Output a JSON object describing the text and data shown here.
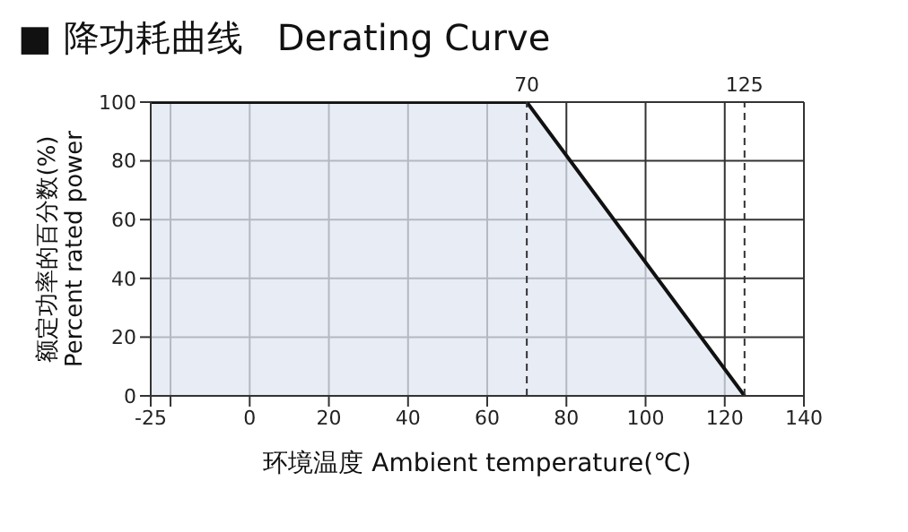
{
  "chart_data": {
    "type": "area",
    "title": "■ 降功耗曲线   Derating Curve",
    "xlabel": "环境温度 Ambient temperature(℃)",
    "ylabel": "额定功率的百分数(%)\nPercent rated power",
    "series": [
      {
        "color": "#dfe6f2",
        "x": [
          -25,
          70,
          125
        ],
        "values": [
          100,
          100,
          0
        ]
      }
    ],
    "xlim": [
      -25,
      140
    ],
    "xticks": [
      -25,
      {
        "value": -20,
        "label": null
      },
      0,
      20,
      40,
      60,
      80,
      100,
      120,
      140
    ],
    "ylim": [
      0,
      100
    ],
    "yticks": [
      0,
      20,
      40,
      60,
      80,
      100
    ],
    "grid": true,
    "ref_lines": [
      {
        "axis": "x",
        "value": 70,
        "label": "70",
        "line_style": "dashed",
        "color": "#333333"
      },
      {
        "axis": "x",
        "value": 125,
        "label": "125",
        "line_style": "dashed",
        "color": "#333333"
      }
    ]
  }
}
